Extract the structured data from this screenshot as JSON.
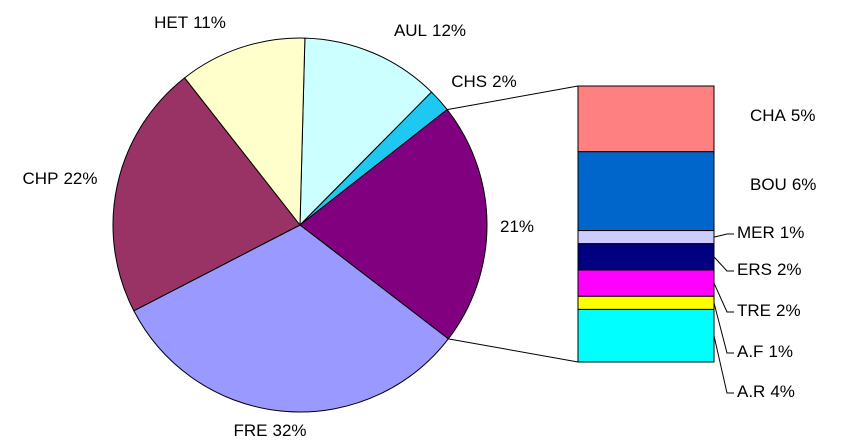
{
  "chart_data": {
    "type": "bar_of_pie",
    "categories": [
      "AUL",
      "CHS",
      null,
      "FRE",
      "CHP",
      "HET"
    ],
    "values": [
      12,
      2,
      21,
      32,
      22,
      11
    ],
    "value_labels": [
      "12%",
      "2%",
      "21%",
      "32%",
      "22%",
      "11%"
    ],
    "colors": [
      "#ccffff",
      "#1ec8f0",
      "#800080",
      "#9999ff",
      "#993366",
      "#ffffcc"
    ],
    "bar": {
      "categories": [
        "CHA",
        "BOU",
        "MER",
        "ERS",
        "TRE",
        "A.F",
        "A.R"
      ],
      "values": [
        5,
        6,
        1,
        2,
        2,
        1,
        4
      ],
      "value_labels": [
        "5%",
        "6%",
        "1%",
        "2%",
        "2%",
        "1%",
        "4%"
      ],
      "colors": [
        "#ff8080",
        "#0066cc",
        "#ccccff",
        "#000080",
        "#ff00ff",
        "#ffff00",
        "#00ffff"
      ]
    }
  }
}
